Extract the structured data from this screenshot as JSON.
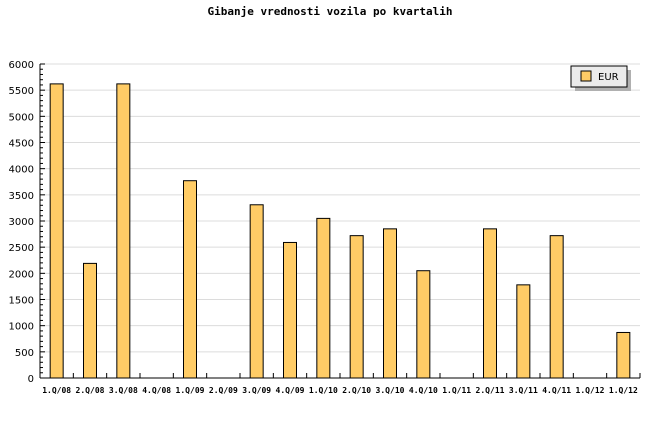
{
  "chart_data": {
    "type": "bar",
    "title": "Gibanje vrednosti vozila po kvartalih",
    "xlabel": "",
    "ylabel": "",
    "ylim": [
      0,
      6000
    ],
    "yticks": [
      0,
      500,
      1000,
      1500,
      2000,
      2500,
      3000,
      3500,
      4000,
      4500,
      5000,
      5500,
      6000
    ],
    "grid": true,
    "legend_position": "top-right",
    "categories": [
      "1.Q/08",
      "2.Q/08",
      "3.Q/08",
      "4.Q/08",
      "1.Q/09",
      "2.Q/09",
      "3.Q/09",
      "4.Q/09",
      "1.Q/10",
      "2.Q/10",
      "3.Q/10",
      "4.Q/10",
      "1.Q/11",
      "2.Q/11",
      "3.Q/11",
      "4.Q/11",
      "1.Q/12",
      "1.Q/12"
    ],
    "series": [
      {
        "name": "EUR",
        "color": "#ffcc66",
        "values": [
          5620,
          2190,
          5620,
          0,
          3770,
          0,
          3310,
          2590,
          3050,
          2720,
          2850,
          2050,
          0,
          2850,
          1780,
          2720,
          0,
          870
        ]
      }
    ]
  }
}
